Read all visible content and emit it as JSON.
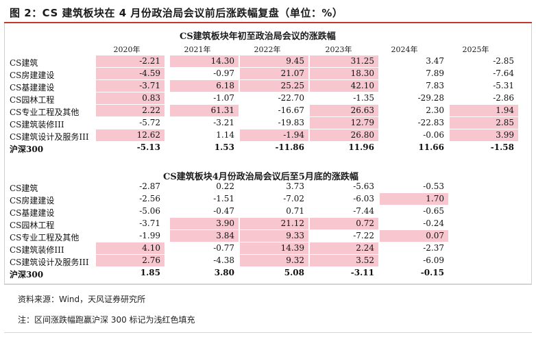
{
  "header": {
    "title": "图 2：CS 建筑板块在 4 月份政治局会议前后涨跌幅复盘（单位：%）"
  },
  "table1": {
    "title": "CS建筑板块年初至政治局会议的涨跌幅",
    "years": [
      "2020年",
      "2021年",
      "2022年",
      "2023年",
      "2024年",
      "2025年"
    ],
    "rows": [
      {
        "label": "CS建筑",
        "values": [
          "-2.21",
          "14.30",
          "9.45",
          "31.25",
          "3.47",
          "-2.85"
        ],
        "hl": [
          1,
          1,
          1,
          1,
          0,
          0
        ],
        "bold": false
      },
      {
        "label": "CS房建建设",
        "values": [
          "-4.59",
          "-0.97",
          "21.07",
          "18.30",
          "7.89",
          "-7.64"
        ],
        "hl": [
          1,
          0,
          1,
          1,
          0,
          0
        ],
        "bold": false
      },
      {
        "label": "CS基建建设",
        "values": [
          "-3.71",
          "6.18",
          "25.25",
          "42.10",
          "7.83",
          "-5.31"
        ],
        "hl": [
          1,
          1,
          1,
          1,
          0,
          0
        ],
        "bold": false
      },
      {
        "label": "CS园林工程",
        "values": [
          "0.83",
          "-1.07",
          "-22.70",
          "-1.35",
          "-29.28",
          "-2.86"
        ],
        "hl": [
          1,
          0,
          0,
          0,
          0,
          0
        ],
        "bold": false
      },
      {
        "label": "CS专业工程及其他",
        "values": [
          "2.22",
          "61.31",
          "-16.67",
          "26.63",
          "2.30",
          "1.94"
        ],
        "hl": [
          1,
          1,
          0,
          1,
          0,
          1
        ],
        "bold": false
      },
      {
        "label": "CS建筑装修III",
        "values": [
          "-5.72",
          "-3.21",
          "-19.83",
          "12.79",
          "-22.83",
          "2.85"
        ],
        "hl": [
          0,
          0,
          0,
          1,
          0,
          1
        ],
        "bold": false
      },
      {
        "label": "CS建筑设计及服务III",
        "values": [
          "12.62",
          "1.14",
          "-1.94",
          "26.80",
          "-0.06",
          "3.99"
        ],
        "hl": [
          1,
          0,
          1,
          1,
          0,
          1
        ],
        "bold": false
      },
      {
        "label": "沪深300",
        "values": [
          "-5.13",
          "1.53",
          "-11.86",
          "11.96",
          "11.66",
          "-1.58"
        ],
        "hl": [
          0,
          0,
          0,
          0,
          0,
          0
        ],
        "bold": true
      }
    ]
  },
  "table2": {
    "title": "CS建筑板块4月份政治局会议后至5月底的涨跌幅",
    "rows": [
      {
        "label": "CS建筑",
        "values": [
          "-2.87",
          "0.22",
          "3.73",
          "-5.63",
          "-0.53"
        ],
        "hl": [
          0,
          0,
          0,
          0,
          0
        ],
        "bold": false
      },
      {
        "label": "CS房建建设",
        "values": [
          "-2.56",
          "-1.51",
          "-7.02",
          "-6.03",
          "1.70"
        ],
        "hl": [
          0,
          0,
          0,
          0,
          1
        ],
        "bold": false
      },
      {
        "label": "CS基建建设",
        "values": [
          "-5.06",
          "-0.47",
          "0.71",
          "-7.44",
          "-0.65"
        ],
        "hl": [
          0,
          0,
          0,
          0,
          0
        ],
        "bold": false
      },
      {
        "label": "CS园林工程",
        "values": [
          "-3.71",
          "3.90",
          "21.12",
          "0.72",
          "-0.24"
        ],
        "hl": [
          0,
          1,
          1,
          1,
          0
        ],
        "bold": false
      },
      {
        "label": "CS专业工程及其他",
        "values": [
          "-1.99",
          "3.84",
          "9.33",
          "-7.22",
          "0.07"
        ],
        "hl": [
          0,
          1,
          1,
          0,
          1
        ],
        "bold": false
      },
      {
        "label": "CS建筑装修III",
        "values": [
          "4.10",
          "-0.77",
          "14.39",
          "2.24",
          "-2.37"
        ],
        "hl": [
          1,
          0,
          1,
          1,
          0
        ],
        "bold": false
      },
      {
        "label": "CS建筑设计及服务III",
        "values": [
          "2.76",
          "-4.38",
          "9.32",
          "3.52",
          "-6.09"
        ],
        "hl": [
          1,
          0,
          1,
          1,
          0
        ],
        "bold": false
      },
      {
        "label": "沪深300",
        "values": [
          "1.85",
          "3.80",
          "5.08",
          "-3.11",
          "-0.15"
        ],
        "hl": [
          0,
          0,
          0,
          0,
          0
        ],
        "bold": true
      }
    ]
  },
  "footer": {
    "source": "资料来源：Wind，天风证券研究所",
    "note": "注：区间涨跌幅跑赢沪深 300 标记为浅红色填充"
  }
}
